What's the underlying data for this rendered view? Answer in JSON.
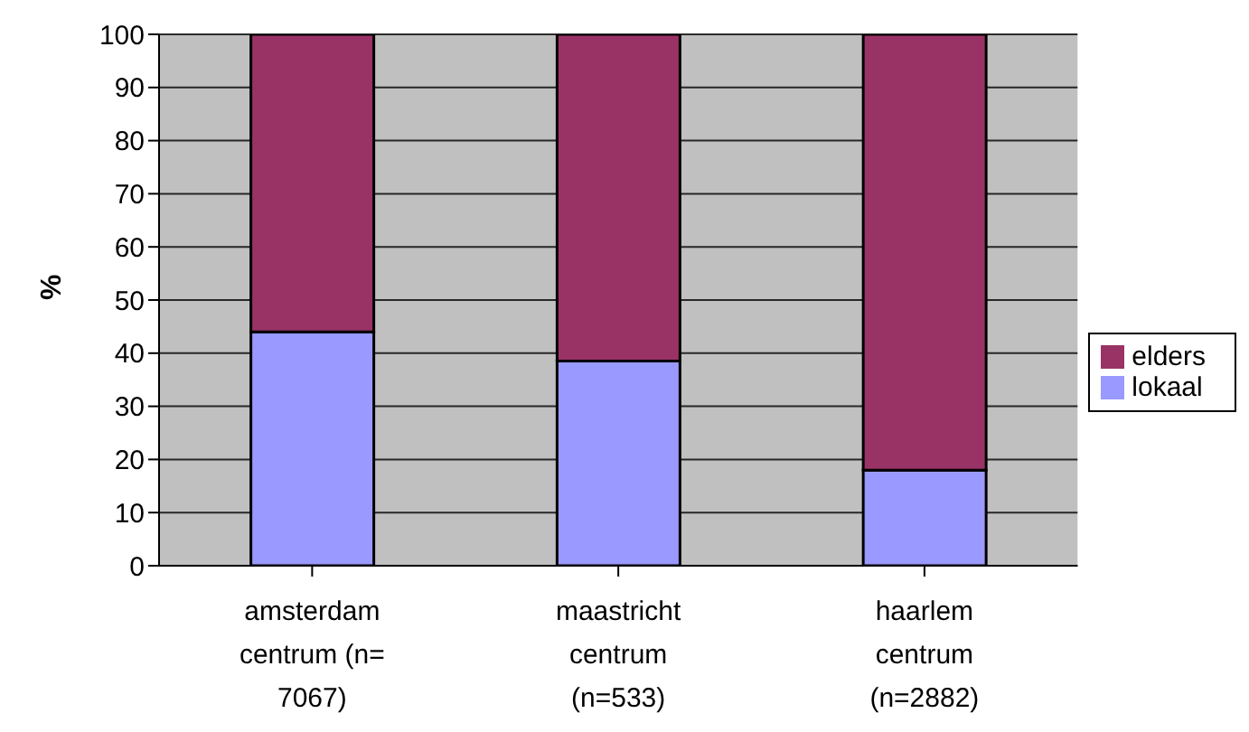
{
  "chart_data": {
    "type": "bar",
    "stacked": true,
    "ylabel": "%",
    "categories": [
      "amsterdam centrum (n= 7067)",
      "maastricht centrum (n=533)",
      "haarlem centrum (n=2882)"
    ],
    "series": [
      {
        "name": "lokaal",
        "color": "#9999ff",
        "values": [
          44,
          38.5,
          18
        ]
      },
      {
        "name": "elders",
        "color": "#993366",
        "values": [
          56,
          61.5,
          82
        ]
      }
    ],
    "ylim": [
      0,
      100
    ],
    "yticks": [
      0,
      10,
      20,
      30,
      40,
      50,
      60,
      70,
      80,
      90,
      100
    ],
    "grid": "y",
    "legend": "right"
  }
}
